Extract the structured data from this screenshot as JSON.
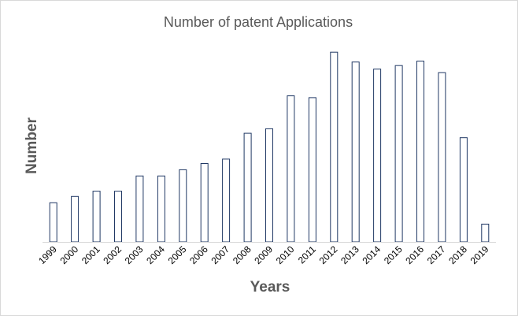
{
  "chart_data": {
    "type": "bar",
    "title": "Number of patent Applications",
    "xlabel": "Years",
    "ylabel": "Number",
    "categories": [
      "1999",
      "2000",
      "2001",
      "2002",
      "2003",
      "2004",
      "2005",
      "2006",
      "2007",
      "2008",
      "2009",
      "2010",
      "2011",
      "2012",
      "2013",
      "2014",
      "2015",
      "2016",
      "2017",
      "2018",
      "2019"
    ],
    "values": [
      44,
      51,
      57,
      57,
      74,
      74,
      81,
      88,
      93,
      122,
      127,
      164,
      162,
      213,
      202,
      194,
      198,
      203,
      190,
      117,
      20
    ],
    "ylim": [
      0,
      230
    ],
    "grid": false,
    "legend": false,
    "bar_fill": "#ffffff",
    "bar_stroke": "#203864",
    "axis_color": "#d9d9d9"
  }
}
